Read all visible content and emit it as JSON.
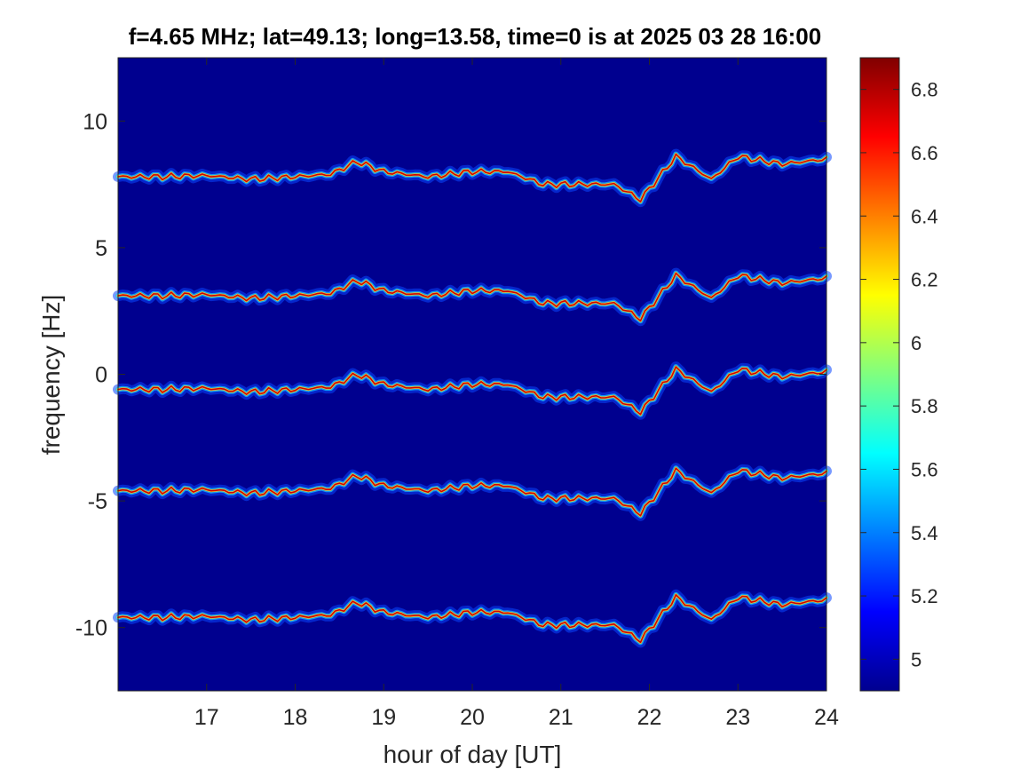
{
  "chart_data": {
    "type": "heatmap",
    "title": "f=4.65 MHz;  lat=49.13; long=13.58, time=0 is at 2025 03 28 16:00",
    "xlabel": "hour of day [UT]",
    "ylabel": "frequency [Hz]",
    "xlim": [
      16,
      24
    ],
    "ylim": [
      -12.5,
      12.5
    ],
    "x_ticks": [
      17,
      18,
      19,
      20,
      21,
      22,
      23,
      24
    ],
    "x_tick_labels": [
      "17",
      "18",
      "19",
      "20",
      "21",
      "22",
      "23",
      "24"
    ],
    "y_ticks": [
      10,
      5,
      0,
      -5,
      -10
    ],
    "y_tick_labels": [
      "10",
      "5",
      "0",
      "-5",
      "-10"
    ],
    "colormap": "jet",
    "background_color": "#00008f",
    "colorbar": {
      "range": [
        4.9,
        6.9
      ],
      "ticks": [
        6.8,
        6.6,
        6.4,
        6.2,
        6,
        5.8,
        5.6,
        5.4,
        5.2,
        5
      ],
      "tick_labels": [
        "6.8",
        "6.6",
        "6.4",
        "6.2",
        "6",
        "5.8",
        "5.6",
        "5.4",
        "5.2",
        "5"
      ]
    },
    "traces": [
      {
        "offset": 7.8
      },
      {
        "offset": 3.1
      },
      {
        "offset": -0.6
      },
      {
        "offset": -4.6
      },
      {
        "offset": -9.6
      }
    ],
    "trace_deviation": {
      "x": [
        16.0,
        16.5,
        17.0,
        17.5,
        18.0,
        18.4,
        18.7,
        19.0,
        19.5,
        20.0,
        20.4,
        20.8,
        21.2,
        21.6,
        21.9,
        22.3,
        22.7,
        23.0,
        23.5,
        24.0
      ],
      "y": [
        0.0,
        0.0,
        0.05,
        -0.1,
        0.0,
        0.1,
        0.6,
        0.2,
        0.0,
        0.2,
        0.2,
        -0.3,
        -0.3,
        -0.3,
        -0.9,
        0.8,
        -0.1,
        0.8,
        0.5,
        0.7
      ]
    }
  }
}
